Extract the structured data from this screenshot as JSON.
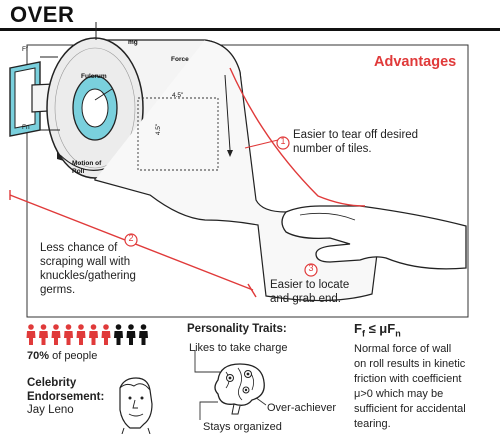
{
  "title": "OVER",
  "advantages_heading": "Advantages",
  "diagram_labels": {
    "ff": "Ff",
    "fn": "Fn",
    "mg": "mg",
    "fulcrum": "Fulcrum",
    "force": "Force",
    "dim_width": "4.5\"",
    "dim_height": "4.5\"",
    "motion": "Motion of Roll"
  },
  "advantages": [
    {
      "number": "1",
      "text_lines": [
        "Easier to tear off desired",
        "number of tiles."
      ]
    },
    {
      "number": "2",
      "text_lines": [
        "Less chance of",
        "scraping wall with",
        "knuckles/gathering",
        "germs."
      ]
    },
    {
      "number": "3",
      "text_lines": [
        "Easier to locate",
        "and grab end."
      ]
    }
  ],
  "people_stat": {
    "percent": "70%",
    "suffix": " of people",
    "red_count": 7,
    "black_count": 3
  },
  "celebrity": {
    "title_lines": [
      "Celebrity",
      "Endorsement:"
    ],
    "name": "Jay Leno"
  },
  "personality": {
    "title": "Personality Traits:",
    "traits": [
      "Likes to take charge",
      "Over-achiever",
      "Stays organized"
    ]
  },
  "formula": {
    "text": "Ff ≤ μFn",
    "desc_lines": [
      "Normal force of wall",
      "on roll results in kinetic",
      "friction with coefficient",
      "μ>0 which may be",
      "sufficient for accidental",
      "tearing."
    ]
  },
  "colors": {
    "accent": "#e03a3a",
    "wall": "#7ad0dd",
    "ink": "#222222"
  }
}
